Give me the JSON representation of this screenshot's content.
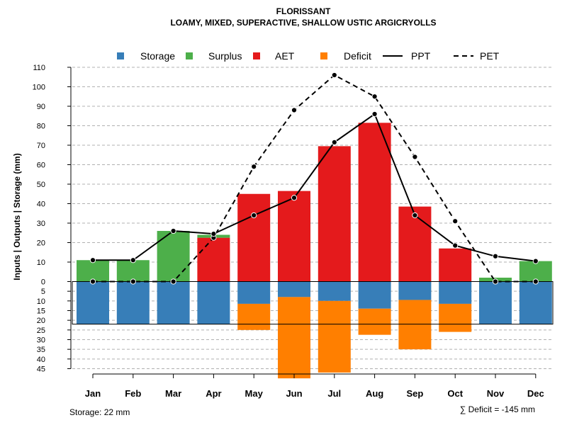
{
  "chart_data": {
    "type": "bar",
    "title": "FLORISSANT",
    "subtitle": "LOAMY, MIXED, SUPERACTIVE, SHALLOW USTIC ARGICRYOLLS",
    "ylabel": "Inputs | Outputs | Storage    (mm)",
    "categories": [
      "Jan",
      "Feb",
      "Mar",
      "Apr",
      "May",
      "Jun",
      "Jul",
      "Aug",
      "Sep",
      "Oct",
      "Nov",
      "Dec"
    ],
    "legend": [
      {
        "label": "Storage",
        "kind": "box",
        "color": "#377eb8"
      },
      {
        "label": "Surplus",
        "kind": "box",
        "color": "#4daf4a"
      },
      {
        "label": "AET",
        "kind": "box",
        "color": "#e41a1c"
      },
      {
        "label": "Deficit",
        "kind": "box",
        "color": "#ff7f00"
      },
      {
        "label": "PPT",
        "kind": "solid",
        "color": "#000000"
      },
      {
        "label": "PET",
        "kind": "dashed",
        "color": "#000000"
      }
    ],
    "y_upper": {
      "min": 0,
      "max": 110,
      "ticks": [
        0,
        10,
        20,
        30,
        40,
        50,
        60,
        70,
        80,
        90,
        100,
        110
      ]
    },
    "y_lower": {
      "min": 0,
      "max": 45,
      "ticks": [
        5,
        10,
        15,
        20,
        25,
        30,
        35,
        40,
        45
      ]
    },
    "series": [
      {
        "name": "Surplus",
        "values": [
          11,
          11,
          26,
          1.5,
          0,
          0,
          0,
          0,
          0,
          0,
          2,
          10.5
        ]
      },
      {
        "name": "AET",
        "values": [
          0,
          0,
          0,
          22.5,
          45,
          46.5,
          69.5,
          81.5,
          38.5,
          17,
          0,
          0
        ]
      },
      {
        "name": "Storage",
        "values": [
          22,
          22,
          22,
          22,
          11.5,
          8,
          10,
          14,
          9.5,
          11.5,
          22,
          22
        ]
      },
      {
        "name": "Deficit",
        "values": [
          0,
          0,
          0,
          0,
          13.5,
          42,
          37,
          13.5,
          25.5,
          14.5,
          0,
          0
        ]
      },
      {
        "name": "PPT",
        "values": [
          11,
          11,
          26,
          24.5,
          34,
          43,
          71.5,
          86,
          34,
          18.5,
          13,
          10.5
        ]
      },
      {
        "name": "PET",
        "values": [
          0,
          0,
          0,
          22.5,
          59,
          88,
          106,
          95,
          64,
          31,
          0,
          0
        ]
      }
    ],
    "storage_capacity": 22,
    "annotations": {
      "storage": "Storage: 22 mm",
      "deficit_sum": "∑ Deficit = -145 mm"
    }
  }
}
